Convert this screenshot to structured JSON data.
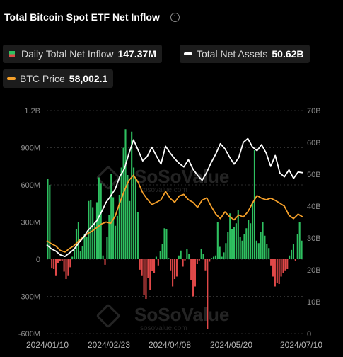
{
  "title": "Total Bitcoin Spot ETF Net Inflow",
  "info_icon": "info-circle-icon",
  "legend": [
    {
      "label": "Daily Total Net Inflow",
      "value": "147.37M",
      "icon": "bar-swatch-icon"
    },
    {
      "label": "Total Net Assets",
      "value": "50.62B",
      "icon": "line-swatch-icon",
      "color": "#ffffff"
    },
    {
      "label": "BTC Price",
      "value": "58,002.1",
      "icon": "line-swatch-icon",
      "color": "#f5a02a"
    }
  ],
  "watermark": "SoSoValue",
  "watermark_sub": "sosovalue.com",
  "colors": {
    "inflow_positive": "#2ec060",
    "inflow_negative": "#e04848",
    "net_assets": "#ffffff",
    "btc_price": "#f5a02a",
    "grid": "#2e2e2e",
    "axis_text": "#8c8c8c"
  },
  "chart_data": {
    "type": "bar",
    "title": "Total Bitcoin Spot ETF Net Inflow",
    "x_ticks": [
      "2024/01/10",
      "2024/02/23",
      "2024/04/08",
      "2024/05/20",
      "2024/07/10"
    ],
    "y_left": {
      "ticks": [
        "1.2B",
        "900M",
        "600M",
        "300M",
        "0",
        "-300M",
        "-600M"
      ],
      "range": [
        -600,
        1200
      ],
      "unit": "M USD"
    },
    "y_right": {
      "ticks": [
        "70B",
        "60B",
        "50B",
        "40B",
        "30B",
        "20B",
        "10B",
        "0"
      ],
      "range": [
        0,
        70
      ],
      "unit": "B USD"
    },
    "grid": true,
    "series": [
      {
        "name": "Daily Total Net Inflow",
        "type": "bar",
        "axis": "left",
        "values": [
          650,
          600,
          -75,
          -80,
          -130,
          -30,
          -15,
          -12,
          -100,
          -160,
          -130,
          -65,
          20,
          75,
          240,
          300,
          65,
          105,
          200,
          180,
          470,
          480,
          420,
          300,
          460,
          660,
          610,
          30,
          -45,
          180,
          360,
          690,
          500,
          270,
          350,
          520,
          740,
          900,
          1050,
          680,
          470,
          1030,
          740,
          650,
          380,
          -85,
          -130,
          -290,
          -320,
          -150,
          -250,
          -95,
          -110,
          20,
          -50,
          65,
          120,
          250,
          240,
          10,
          -90,
          -220,
          -160,
          -140,
          30,
          70,
          -60,
          -10,
          80,
          40,
          -170,
          -300,
          -220,
          -40,
          -10,
          80,
          40,
          -90,
          -560,
          -20,
          10,
          20,
          30,
          300,
          100,
          20,
          55,
          130,
          220,
          370,
          240,
          260,
          290,
          400,
          180,
          150,
          200,
          250,
          320,
          290,
          460,
          880,
          150,
          130,
          220,
          300,
          190,
          120,
          90,
          -50,
          -140,
          -220,
          -190,
          -200,
          -140,
          -110,
          -90,
          -80,
          30,
          75,
          125,
          -15,
          200,
          300,
          150
        ]
      },
      {
        "name": "Total Net Assets",
        "type": "line",
        "axis": "right",
        "points": [
          [
            0,
            27.9
          ],
          [
            3,
            26.6
          ],
          [
            6,
            25.9
          ],
          [
            9,
            24.7
          ],
          [
            12,
            24.2
          ],
          [
            15,
            25.3
          ],
          [
            18,
            26.5
          ],
          [
            21,
            28.5
          ],
          [
            24,
            30.1
          ],
          [
            27,
            32.3
          ],
          [
            30,
            33.8
          ],
          [
            33,
            35.5
          ],
          [
            36,
            38.2
          ],
          [
            39,
            41.2
          ],
          [
            42,
            43.2
          ],
          [
            45,
            45.4
          ],
          [
            48,
            49.3
          ],
          [
            51,
            51.7
          ],
          [
            54,
            56.6
          ],
          [
            57,
            60.8
          ],
          [
            60,
            57.6
          ],
          [
            63,
            54.2
          ],
          [
            66,
            55.6
          ],
          [
            69,
            58.5
          ],
          [
            72,
            55.8
          ],
          [
            75,
            53.2
          ],
          [
            78,
            58.8
          ],
          [
            81,
            56.7
          ],
          [
            84,
            54.9
          ],
          [
            87,
            53.4
          ],
          [
            90,
            52.3
          ],
          [
            93,
            54.6
          ],
          [
            96,
            51.6
          ],
          [
            99,
            49.7
          ],
          [
            102,
            48.1
          ],
          [
            105,
            50.6
          ],
          [
            108,
            53.7
          ],
          [
            111,
            56.4
          ],
          [
            114,
            59.6
          ],
          [
            117,
            58.0
          ],
          [
            120,
            55.4
          ],
          [
            123,
            53.2
          ],
          [
            126,
            55.2
          ],
          [
            129,
            60.0
          ],
          [
            132,
            61.2
          ],
          [
            135,
            58.6
          ],
          [
            138,
            57.4
          ],
          [
            141,
            59.3
          ],
          [
            144,
            56.7
          ],
          [
            147,
            52.5
          ],
          [
            150,
            55.9
          ],
          [
            153,
            50.4
          ],
          [
            156,
            49.2
          ],
          [
            159,
            51.4
          ],
          [
            162,
            48.7
          ],
          [
            165,
            50.7
          ],
          [
            168,
            50.5
          ]
        ]
      },
      {
        "name": "BTC Price",
        "type": "line",
        "axis": "right",
        "points": [
          [
            0,
            29.2
          ],
          [
            3,
            28.2
          ],
          [
            6,
            27.5
          ],
          [
            9,
            26.1
          ],
          [
            12,
            25.6
          ],
          [
            15,
            26.7
          ],
          [
            18,
            27.6
          ],
          [
            21,
            29.1
          ],
          [
            24,
            30.3
          ],
          [
            27,
            31.4
          ],
          [
            30,
            32.2
          ],
          [
            33,
            33.3
          ],
          [
            36,
            34.4
          ],
          [
            39,
            35.0
          ],
          [
            42,
            34.6
          ],
          [
            45,
            36.9
          ],
          [
            48,
            41.1
          ],
          [
            51,
            44.9
          ],
          [
            54,
            48.1
          ],
          [
            57,
            49.7
          ],
          [
            60,
            47.5
          ],
          [
            63,
            44.2
          ],
          [
            66,
            42.2
          ],
          [
            69,
            40.5
          ],
          [
            72,
            41.2
          ],
          [
            75,
            42.0
          ],
          [
            78,
            44.6
          ],
          [
            81,
            42.5
          ],
          [
            84,
            41.2
          ],
          [
            87,
            43.2
          ],
          [
            90,
            43.7
          ],
          [
            93,
            42.0
          ],
          [
            96,
            41.2
          ],
          [
            99,
            39.6
          ],
          [
            102,
            41.9
          ],
          [
            105,
            42.6
          ],
          [
            108,
            39.9
          ],
          [
            111,
            37.5
          ],
          [
            114,
            36.1
          ],
          [
            117,
            38.2
          ],
          [
            120,
            36.7
          ],
          [
            123,
            35.7
          ],
          [
            126,
            37.2
          ],
          [
            129,
            36.6
          ],
          [
            132,
            38.2
          ],
          [
            135,
            40.9
          ],
          [
            138,
            43.3
          ],
          [
            141,
            42.5
          ],
          [
            144,
            42.0
          ],
          [
            147,
            42.5
          ],
          [
            150,
            41.8
          ],
          [
            153,
            40.9
          ],
          [
            156,
            40.0
          ],
          [
            159,
            37.1
          ],
          [
            162,
            36.1
          ],
          [
            165,
            37.5
          ],
          [
            168,
            36.6
          ]
        ]
      }
    ]
  }
}
